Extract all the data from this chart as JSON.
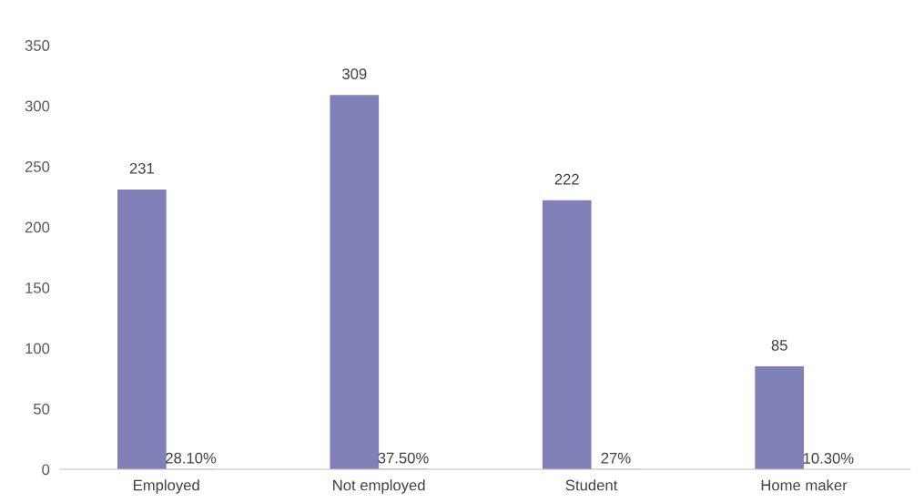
{
  "chart_data": {
    "type": "bar",
    "categories": [
      "Employed",
      "Not employed",
      "Student",
      "Home maker"
    ],
    "series": [
      {
        "color": "#8080b8",
        "values": [
          231,
          309,
          222,
          85
        ],
        "value_labels": [
          "231",
          "309",
          "222",
          "85"
        ]
      },
      {
        "color": "#8080b8",
        "values": [
          0.281,
          0.375,
          0.27,
          0.103
        ],
        "value_labels": [
          "28.10%",
          "37.50%",
          "27%",
          "10.30%"
        ]
      }
    ],
    "ylim": [
      0,
      350
    ],
    "yticks": [
      0,
      50,
      100,
      150,
      200,
      250,
      300,
      350
    ],
    "grid": false,
    "legend": false
  }
}
